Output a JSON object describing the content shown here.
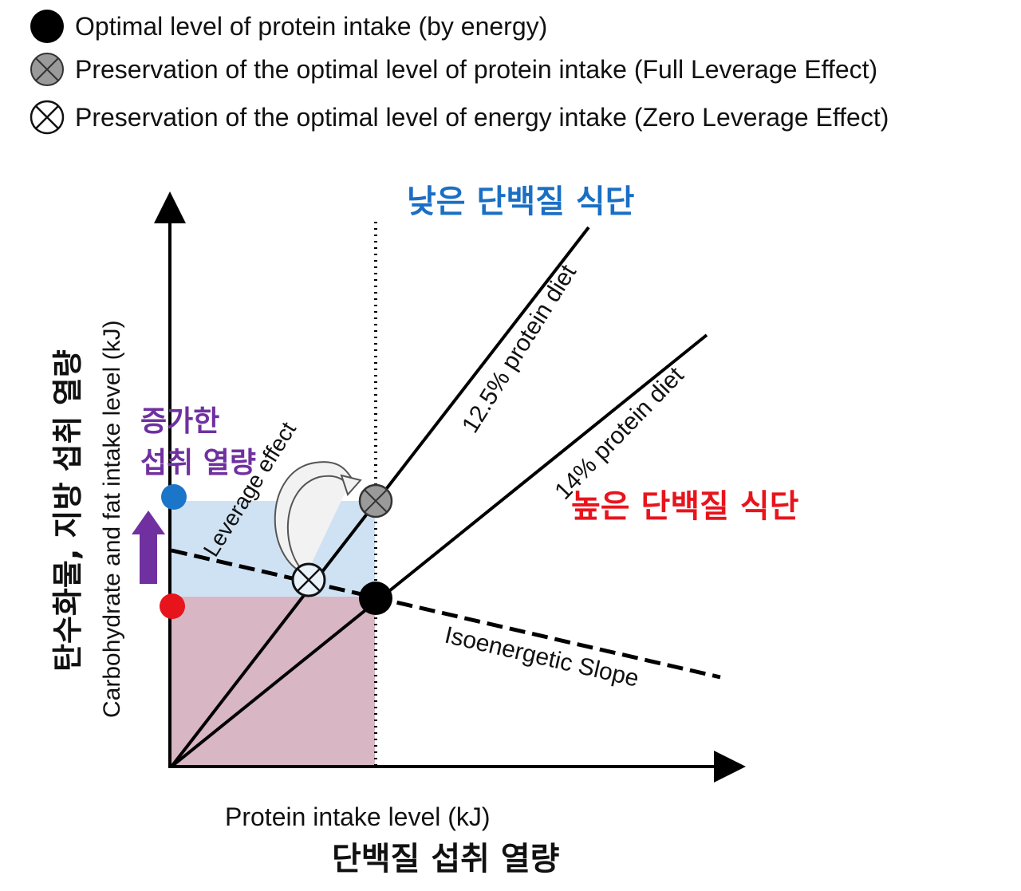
{
  "legend": [
    {
      "symbol": "black-filled-circle",
      "label": "Optimal level of protein intake (by energy)"
    },
    {
      "symbol": "gray-crossed-circle",
      "label": "Preservation of the optimal level of protein intake (Full Leverage Effect)"
    },
    {
      "symbol": "open-crossed-circle",
      "label": "Preservation of the optimal level of energy intake (Zero Leverage Effect)"
    }
  ],
  "diagram": {
    "x_axis_label_en": "Protein intake level (kJ)",
    "x_axis_label_ko": "단백질 섭취 열량",
    "y_axis_label_en": "Carbohydrate and fat intake level (kJ)",
    "y_axis_label_ko": "탄수화물, 지방 섭취 열량",
    "low_protein_label": "낮은 단백질 식단",
    "high_protein_label": "높은 단백질 식단",
    "line_12_5_label": "12.5% protein diet",
    "line_14_label": "14% protein diet",
    "isoenergetic_label": "Isoenergetic Slope",
    "leverage_label": "Leverage effect",
    "increase_label_line1": "증가한",
    "increase_label_line2": "섭취 열량"
  },
  "colors": {
    "axis": "#000000",
    "blue_label": "#1a6fc4",
    "red_label": "#e8141c",
    "purple": "#7030a0",
    "blue_region": "#cfe2f3",
    "mauve_region": "#d8b6c4",
    "blue_marker": "#1b75c9",
    "red_marker": "#e8141c",
    "gray_marker": "#9a9a9a"
  }
}
